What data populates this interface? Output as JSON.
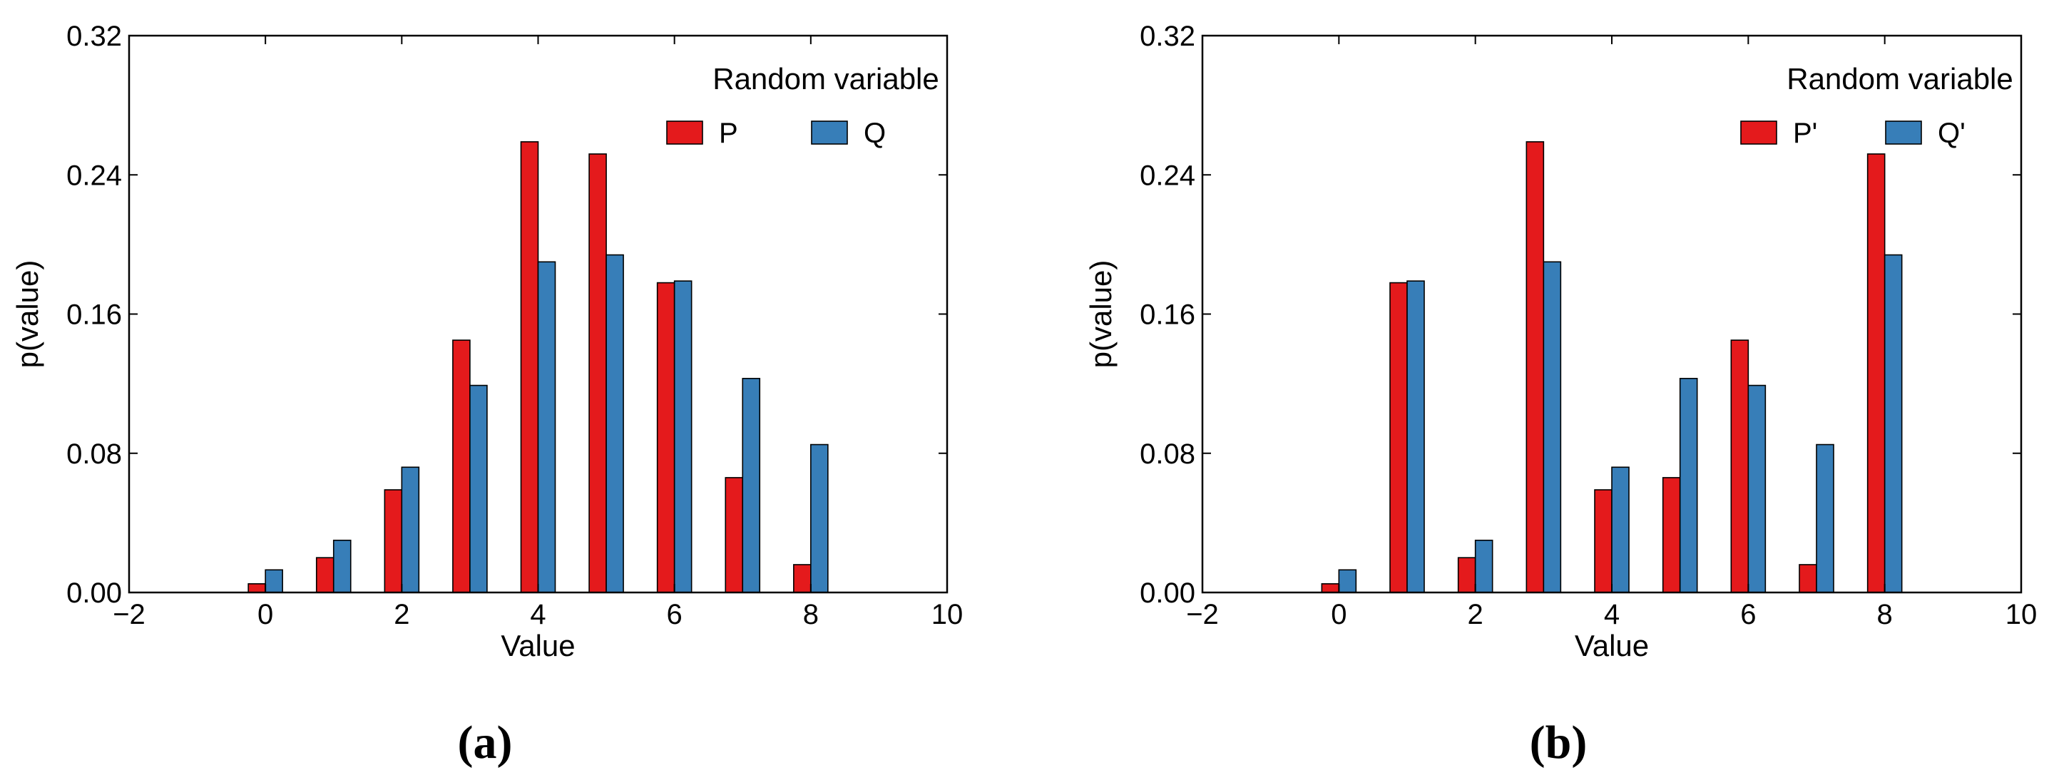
{
  "colors": {
    "series_1": "#e41a1c",
    "series_2": "#377eb8",
    "axis": "#000000",
    "background": "#ffffff"
  },
  "chart_data": [
    {
      "type": "bar",
      "panel_label": "(a)",
      "title": "",
      "xlabel": "Value",
      "ylabel": "p(value)",
      "xlim": [
        -2,
        10
      ],
      "ylim": [
        0,
        0.32
      ],
      "xticks": [
        -2,
        0,
        2,
        4,
        6,
        8,
        10
      ],
      "xtick_labels": [
        "−2",
        "0",
        "2",
        "4",
        "6",
        "8",
        "10"
      ],
      "yticks": [
        0,
        0.08,
        0.16,
        0.24,
        0.32
      ],
      "ytick_labels": [
        "0.00",
        "0.08",
        "0.16",
        "0.24",
        "0.32"
      ],
      "grid": false,
      "legend": {
        "title": "Random variable",
        "position": "top-right"
      },
      "x": [
        0,
        1,
        2,
        3,
        4,
        5,
        6,
        7,
        8
      ],
      "series": [
        {
          "name": "P",
          "color": "#e41a1c",
          "values": [
            0.005,
            0.02,
            0.059,
            0.145,
            0.259,
            0.252,
            0.178,
            0.066,
            0.016
          ]
        },
        {
          "name": "Q",
          "color": "#377eb8",
          "values": [
            0.013,
            0.03,
            0.072,
            0.119,
            0.19,
            0.194,
            0.179,
            0.123,
            0.085
          ]
        }
      ]
    },
    {
      "type": "bar",
      "panel_label": "(b)",
      "title": "",
      "xlabel": "Value",
      "ylabel": "p(value)",
      "xlim": [
        -2,
        10
      ],
      "ylim": [
        0,
        0.32
      ],
      "xticks": [
        -2,
        0,
        2,
        4,
        6,
        8,
        10
      ],
      "xtick_labels": [
        "−2",
        "0",
        "2",
        "4",
        "6",
        "8",
        "10"
      ],
      "yticks": [
        0,
        0.08,
        0.16,
        0.24,
        0.32
      ],
      "ytick_labels": [
        "0.00",
        "0.08",
        "0.16",
        "0.24",
        "0.32"
      ],
      "grid": false,
      "legend": {
        "title": "Random variable",
        "position": "top-right"
      },
      "x": [
        0,
        1,
        2,
        3,
        4,
        5,
        6,
        7,
        8
      ],
      "series": [
        {
          "name": "P'",
          "color": "#e41a1c",
          "values": [
            0.005,
            0.178,
            0.02,
            0.259,
            0.059,
            0.066,
            0.145,
            0.016,
            0.252
          ]
        },
        {
          "name": "Q'",
          "color": "#377eb8",
          "values": [
            0.013,
            0.179,
            0.03,
            0.19,
            0.072,
            0.123,
            0.119,
            0.085,
            0.194
          ]
        }
      ]
    }
  ]
}
